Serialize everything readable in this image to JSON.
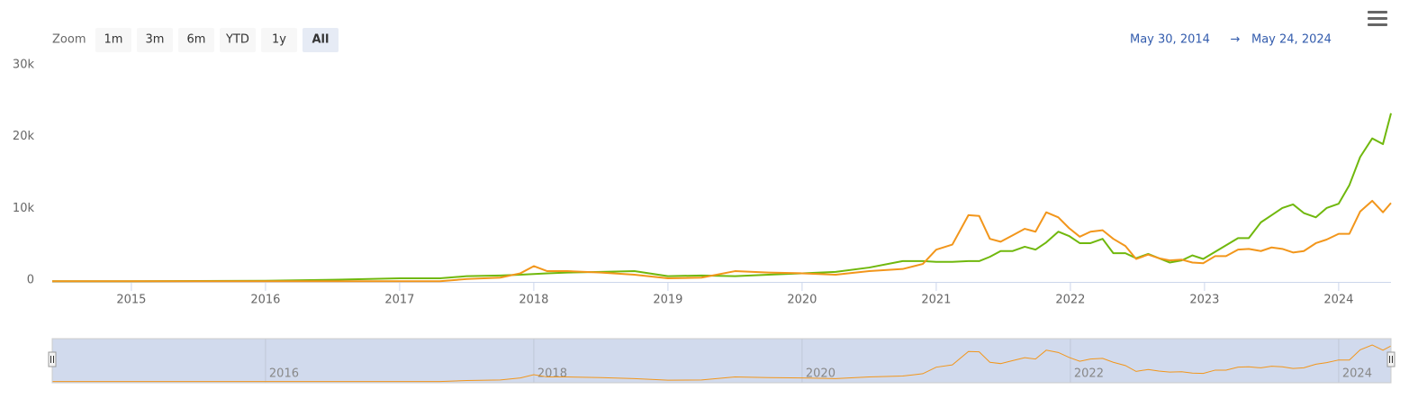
{
  "chart_data": {
    "type": "line",
    "range_selector": {
      "label": "Zoom",
      "buttons": [
        "1m",
        "3m",
        "6m",
        "YTD",
        "1y",
        "All"
      ],
      "selected": 5,
      "from": "May 30, 2014",
      "separator": "→",
      "to": "May 24, 2024"
    },
    "x": [
      2014.41,
      2015,
      2016,
      2016.5,
      2017,
      2017.3,
      2017.5,
      2017.75,
      2017.9,
      2018,
      2018.1,
      2018.25,
      2018.5,
      2018.75,
      2019,
      2019.25,
      2019.5,
      2019.75,
      2020,
      2020.25,
      2020.5,
      2020.75,
      2020.9,
      2021.0,
      2021.12,
      2021.24,
      2021.32,
      2021.4,
      2021.48,
      2021.57,
      2021.66,
      2021.74,
      2021.82,
      2021.91,
      2021.99,
      2022.07,
      2022.15,
      2022.24,
      2022.32,
      2022.41,
      2022.49,
      2022.58,
      2022.66,
      2022.74,
      2022.83,
      2022.91,
      2022.99,
      2023.08,
      2023.16,
      2023.25,
      2023.33,
      2023.42,
      2023.5,
      2023.58,
      2023.66,
      2023.74,
      2023.83,
      2023.91,
      2024.0,
      2024.08,
      2024.16,
      2024.25,
      2024.33,
      2024.39
    ],
    "series": [
      {
        "color": "#70b80d",
        "values": [
          100,
          100,
          150,
          300,
          500,
          500,
          800,
          900,
          1000,
          1100,
          1200,
          1300,
          1400,
          1500,
          800,
          900,
          800,
          1000,
          1200,
          1400,
          2000,
          2900,
          2900,
          2800,
          2800,
          2900,
          2900,
          3500,
          4300,
          4300,
          4900,
          4500,
          5500,
          7000,
          6400,
          5400,
          5400,
          6000,
          4000,
          4000,
          3300,
          3900,
          3300,
          2700,
          3000,
          3700,
          3200,
          4200,
          5100,
          6100,
          6100,
          8300,
          9300,
          10300,
          10800,
          9600,
          9000,
          10300,
          10900,
          13500,
          17400,
          20000,
          19200,
          23500
        ]
      },
      {
        "color": "#f2961b",
        "values": [
          100,
          100,
          100,
          100,
          100,
          100,
          400,
          600,
          1200,
          2200,
          1500,
          1500,
          1300,
          1000,
          500,
          600,
          1500,
          1300,
          1200,
          1000,
          1500,
          1800,
          2500,
          4500,
          5200,
          9300,
          9200,
          6000,
          5600,
          6500,
          7400,
          7000,
          9700,
          9000,
          7500,
          6300,
          7000,
          7200,
          6000,
          5000,
          3200,
          3800,
          3300,
          3000,
          3100,
          2700,
          2600,
          3600,
          3600,
          4500,
          4600,
          4300,
          4800,
          4600,
          4100,
          4300,
          5400,
          5900,
          6700,
          6700,
          9800,
          11300,
          9700,
          11000
        ]
      }
    ],
    "xlim": [
      2014.41,
      2024.39
    ],
    "xticks": [
      2015,
      2016,
      2017,
      2018,
      2019,
      2020,
      2021,
      2022,
      2023,
      2024
    ],
    "ylim": [
      0,
      30000
    ],
    "yticks": [
      0,
      {
        "value": 10000,
        "label": "10k"
      },
      {
        "value": 20000,
        "label": "20k"
      },
      {
        "value": 30000,
        "label": "30k"
      }
    ],
    "grid": false,
    "navigator": {
      "series": 1,
      "xticks": [
        2016,
        2018,
        2020,
        2022,
        2024
      ]
    }
  }
}
